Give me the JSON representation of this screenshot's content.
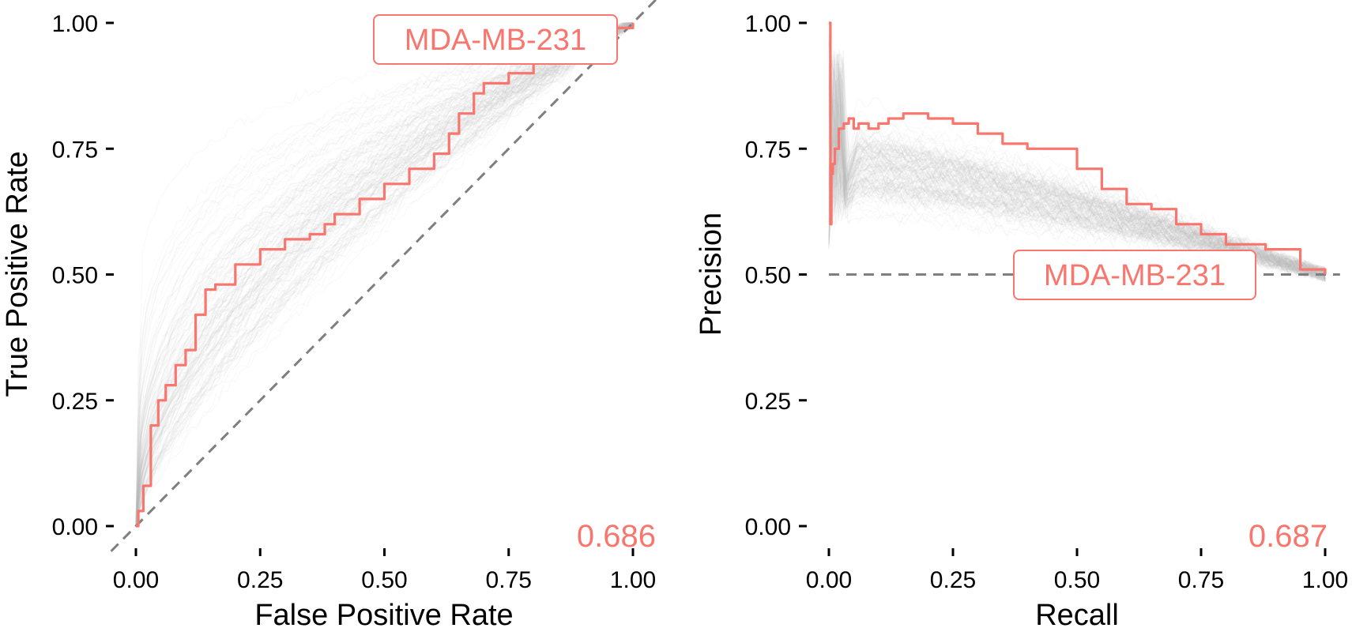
{
  "colors": {
    "highlight": "#F8766D",
    "background_curves": "#bdbdbd",
    "reference_line": "#7f7f7f"
  },
  "chart_data": [
    {
      "type": "line",
      "title": "",
      "xlabel": "False Positive Rate",
      "ylabel": "True Positive Rate",
      "xlim": [
        0,
        1
      ],
      "ylim": [
        0,
        1
      ],
      "x_ticks": [
        "0.00",
        "0.25",
        "0.50",
        "0.75",
        "1.00"
      ],
      "y_ticks": [
        "0.00",
        "0.25",
        "0.50",
        "0.75",
        "1.00"
      ],
      "grid": false,
      "legend": "none",
      "reference_line": {
        "style": "dashed",
        "from": [
          0,
          0
        ],
        "to": [
          1,
          1
        ]
      },
      "callout": "MDA-MB-231",
      "auc_label": "0.686",
      "background_series_count": "many",
      "series": [
        {
          "highlighted": true,
          "x": [
            0,
            0.005,
            0.015,
            0.03,
            0.045,
            0.06,
            0.08,
            0.1,
            0.12,
            0.14,
            0.16,
            0.2,
            0.25,
            0.3,
            0.35,
            0.38,
            0.4,
            0.45,
            0.5,
            0.55,
            0.6,
            0.63,
            0.65,
            0.68,
            0.7,
            0.75,
            0.8,
            0.85,
            0.9,
            0.95,
            1.0
          ],
          "y": [
            0,
            0.03,
            0.08,
            0.2,
            0.25,
            0.28,
            0.32,
            0.35,
            0.42,
            0.47,
            0.48,
            0.52,
            0.55,
            0.57,
            0.58,
            0.6,
            0.62,
            0.65,
            0.68,
            0.71,
            0.74,
            0.78,
            0.82,
            0.86,
            0.88,
            0.9,
            0.93,
            0.96,
            0.97,
            0.99,
            1.0
          ]
        }
      ]
    },
    {
      "type": "line",
      "title": "",
      "xlabel": "Recall",
      "ylabel": "Precision",
      "xlim": [
        0,
        1
      ],
      "ylim": [
        0,
        1
      ],
      "x_ticks": [
        "0.00",
        "0.25",
        "0.50",
        "0.75",
        "1.00"
      ],
      "y_ticks": [
        "0.00",
        "0.25",
        "0.50",
        "0.75",
        "1.00"
      ],
      "grid": false,
      "legend": "none",
      "reference_line": {
        "style": "dashed",
        "from": [
          0,
          0.5
        ],
        "to": [
          1,
          0.5
        ]
      },
      "callout": "MDA-MB-231",
      "auc_label": "0.687",
      "background_series_count": "many",
      "series": [
        {
          "highlighted": true,
          "x": [
            0.0,
            0.003,
            0.005,
            0.008,
            0.012,
            0.02,
            0.03,
            0.04,
            0.05,
            0.06,
            0.08,
            0.1,
            0.12,
            0.15,
            0.2,
            0.25,
            0.3,
            0.35,
            0.4,
            0.45,
            0.5,
            0.55,
            0.6,
            0.65,
            0.7,
            0.75,
            0.8,
            0.85,
            0.88,
            0.95,
            1.0
          ],
          "y": [
            1.0,
            0.6,
            0.7,
            0.72,
            0.75,
            0.79,
            0.8,
            0.81,
            0.79,
            0.8,
            0.79,
            0.8,
            0.81,
            0.82,
            0.81,
            0.8,
            0.78,
            0.76,
            0.75,
            0.75,
            0.71,
            0.67,
            0.64,
            0.63,
            0.6,
            0.58,
            0.56,
            0.56,
            0.55,
            0.51,
            0.5
          ]
        }
      ]
    }
  ]
}
